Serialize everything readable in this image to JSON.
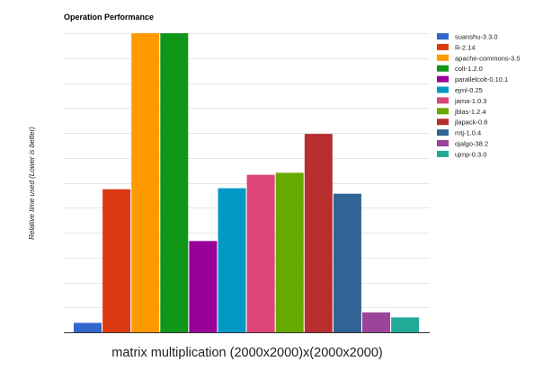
{
  "chart_data": {
    "type": "bar",
    "title": "Operation Performance",
    "xlabel": "matrix multiplication (2000x2000)x(2000x2000)",
    "ylabel": "Relative time used (Lower is better)",
    "ylim": [
      0,
      6
    ],
    "grid": true,
    "legend": "right",
    "categories": [
      "matrix multiplication (2000x2000)x(2000x2000)"
    ],
    "series": [
      {
        "name": "suanshu-3.3.0",
        "values": [
          0.19
        ],
        "color": "#3366cc"
      },
      {
        "name": "R-2.14",
        "values": [
          2.87
        ],
        "color": "#dc3912"
      },
      {
        "name": "apache-commons-3.5",
        "values": [
          6.0
        ],
        "color": "#ff9900"
      },
      {
        "name": "colt-1.2.0",
        "values": [
          6.0
        ],
        "color": "#109618"
      },
      {
        "name": "parallelcolt-0.10.1",
        "values": [
          1.83
        ],
        "color": "#990099"
      },
      {
        "name": "ejml-0.25",
        "values": [
          2.89
        ],
        "color": "#0099c6"
      },
      {
        "name": "jama-1.0.3",
        "values": [
          3.16
        ],
        "color": "#dd4477"
      },
      {
        "name": "jblas-1.2.4",
        "values": [
          3.2
        ],
        "color": "#66aa00"
      },
      {
        "name": "jlapack-0.8",
        "values": [
          3.98
        ],
        "color": "#b82e2e"
      },
      {
        "name": "mtj-1.0.4",
        "values": [
          2.78
        ],
        "color": "#316395"
      },
      {
        "name": "ojalgo-38.2",
        "values": [
          0.4
        ],
        "color": "#994499"
      },
      {
        "name": "ujmp-0.3.0",
        "values": [
          0.3
        ],
        "color": "#22aa99"
      }
    ]
  }
}
